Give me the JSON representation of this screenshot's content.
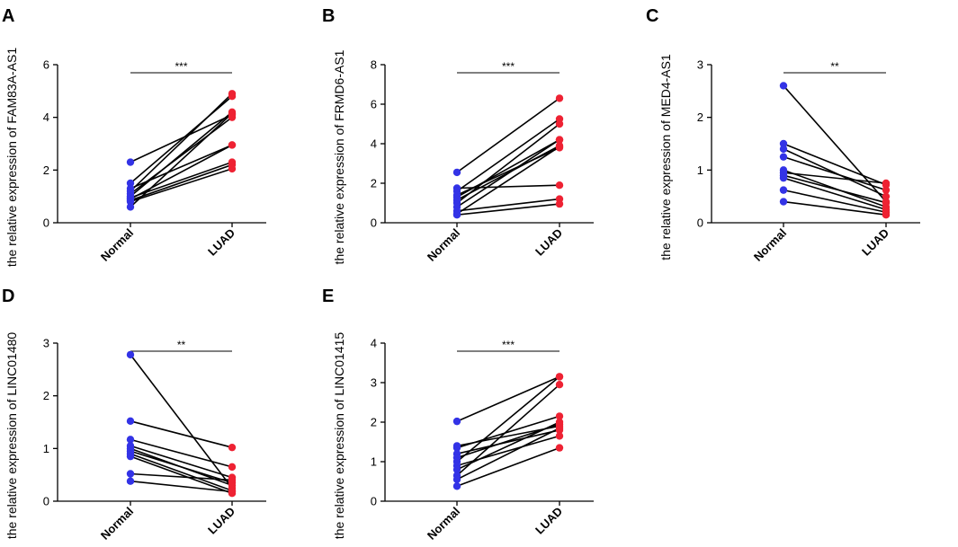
{
  "colors": {
    "normal": "#3333e6",
    "luad": "#ee2233",
    "line": "#000000"
  },
  "chart_data": [
    {
      "panel": "A",
      "type": "scatter",
      "title": "",
      "ylabel": "the relative expression of FAM83A-AS1",
      "categories": [
        "Normal",
        "LUAD"
      ],
      "ylim": [
        0,
        6
      ],
      "yticks": [
        "0",
        "2",
        "4",
        "6"
      ],
      "significance": "***",
      "pairs": [
        [
          2.3,
          4.1
        ],
        [
          1.5,
          4.8
        ],
        [
          1.3,
          2.95
        ],
        [
          1.2,
          4.9
        ],
        [
          1.1,
          4.0
        ],
        [
          1.0,
          4.2
        ],
        [
          0.95,
          2.3
        ],
        [
          0.9,
          2.95
        ],
        [
          0.85,
          2.2
        ],
        [
          0.8,
          2.05
        ],
        [
          0.6,
          4.15
        ]
      ]
    },
    {
      "panel": "B",
      "type": "scatter",
      "title": "",
      "ylabel": "the relative expression of FRMD6-AS1",
      "categories": [
        "Normal",
        "LUAD"
      ],
      "ylim": [
        0,
        8
      ],
      "yticks": [
        "0",
        "2",
        "4",
        "6",
        "8"
      ],
      "significance": "***",
      "pairs": [
        [
          2.55,
          6.3
        ],
        [
          1.75,
          1.9
        ],
        [
          1.6,
          5.25
        ],
        [
          1.4,
          3.8
        ],
        [
          1.3,
          4.2
        ],
        [
          1.15,
          3.9
        ],
        [
          1.0,
          5.0
        ],
        [
          0.8,
          4.2
        ],
        [
          0.6,
          1.2
        ],
        [
          0.45,
          3.85
        ],
        [
          0.4,
          0.95
        ]
      ]
    },
    {
      "panel": "C",
      "type": "scatter",
      "title": "",
      "ylabel": "the relative expression of MED4-AS1",
      "categories": [
        "Normal",
        "LUAD"
      ],
      "ylim": [
        0,
        3
      ],
      "yticks": [
        "0",
        "1",
        "2",
        "3"
      ],
      "significance": "**",
      "pairs": [
        [
          2.6,
          0.4
        ],
        [
          1.5,
          0.72
        ],
        [
          1.4,
          0.5
        ],
        [
          1.25,
          0.62
        ],
        [
          1.0,
          0.3
        ],
        [
          0.95,
          0.75
        ],
        [
          0.9,
          0.38
        ],
        [
          0.85,
          0.25
        ],
        [
          0.62,
          0.2
        ],
        [
          0.4,
          0.15
        ]
      ]
    },
    {
      "panel": "D",
      "type": "scatter",
      "title": "",
      "ylabel": "the relative expression of LINC01480",
      "categories": [
        "Normal",
        "LUAD"
      ],
      "ylim": [
        0,
        3
      ],
      "yticks": [
        "0",
        "1",
        "2",
        "3"
      ],
      "significance": "**",
      "pairs": [
        [
          2.78,
          0.25
        ],
        [
          1.52,
          1.02
        ],
        [
          1.17,
          0.65
        ],
        [
          1.05,
          0.45
        ],
        [
          1.0,
          0.3
        ],
        [
          0.95,
          0.35
        ],
        [
          0.9,
          0.2
        ],
        [
          0.85,
          0.15
        ],
        [
          0.52,
          0.4
        ],
        [
          0.38,
          0.18
        ]
      ]
    },
    {
      "panel": "E",
      "type": "scatter",
      "title": "",
      "ylabel": "the relative expression of LINC01415",
      "categories": [
        "Normal",
        "LUAD"
      ],
      "ylim": [
        0,
        4
      ],
      "yticks": [
        "0",
        "1",
        "2",
        "3",
        "4"
      ],
      "significance": "***",
      "pairs": [
        [
          2.02,
          3.15
        ],
        [
          1.4,
          1.9
        ],
        [
          1.35,
          2.15
        ],
        [
          1.2,
          1.8
        ],
        [
          1.1,
          1.95
        ],
        [
          1.0,
          3.15
        ],
        [
          0.9,
          1.65
        ],
        [
          0.8,
          2.0
        ],
        [
          0.65,
          2.95
        ],
        [
          0.55,
          1.85
        ],
        [
          0.38,
          1.35
        ]
      ]
    }
  ]
}
